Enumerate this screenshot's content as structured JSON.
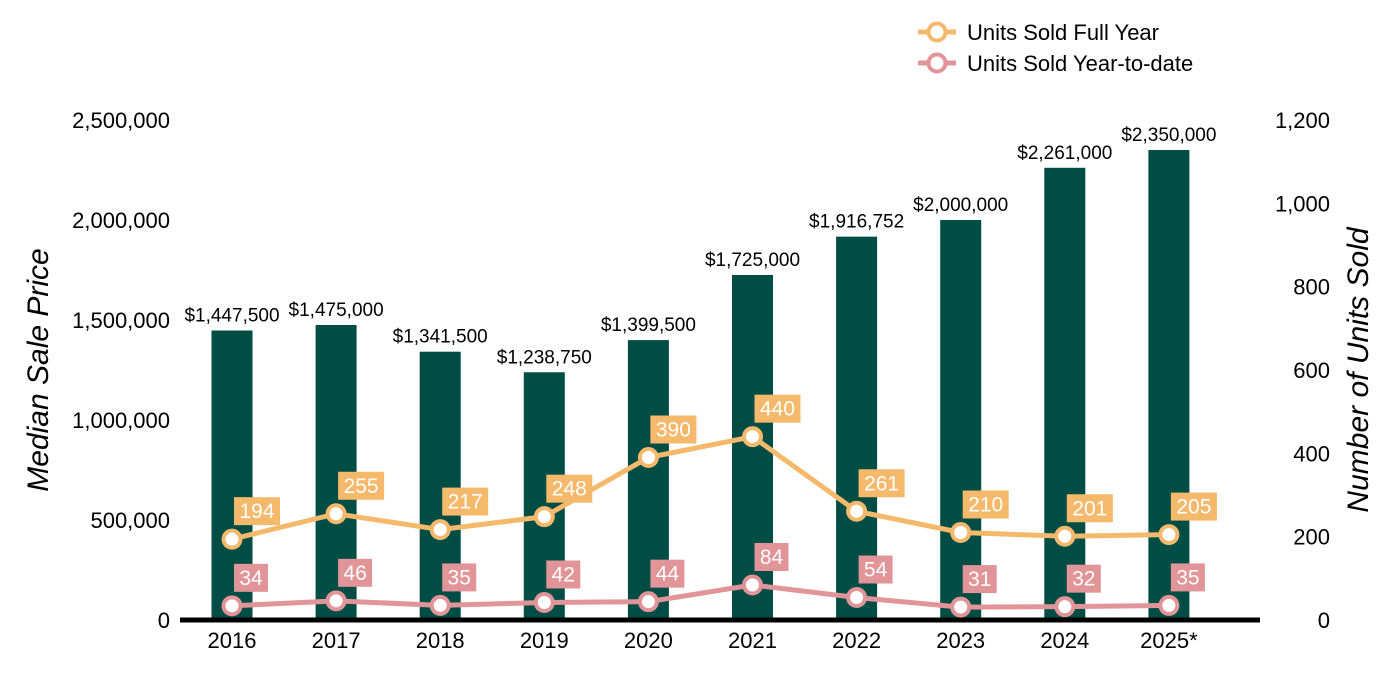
{
  "chart_data": {
    "type": "bar",
    "categories": [
      "2016",
      "2017",
      "2018",
      "2019",
      "2020",
      "2021",
      "2022",
      "2023",
      "2024",
      "2025*"
    ],
    "bar_series": {
      "values": [
        1447500,
        1475000,
        1341500,
        1238750,
        1399500,
        1725000,
        1916752,
        2000000,
        2261000,
        2350000
      ],
      "labels": [
        "$1,447,500",
        "$1,475,000",
        "$1,341,500",
        "$1,238,750",
        "$1,399,500",
        "$1,725,000",
        "$1,916,752",
        "$2,000,000",
        "$2,261,000",
        "$2,350,000"
      ],
      "color": "#004d45"
    },
    "line_series": [
      {
        "name": "Units Sold Full Year",
        "values": [
          194,
          255,
          217,
          248,
          390,
          440,
          261,
          210,
          201,
          205
        ],
        "color": "#f5b96b"
      },
      {
        "name": "Units Sold Year-to-date",
        "values": [
          34,
          46,
          35,
          42,
          44,
          84,
          54,
          31,
          32,
          35
        ],
        "color": "#e19599"
      }
    ],
    "ylabel": "Median Sale Price",
    "y2label": "Number of Units Sold",
    "ylim": [
      0,
      2500000
    ],
    "y2lim": [
      0,
      1200
    ],
    "yticks": [
      "0",
      "500,000",
      "1,000,000",
      "1,500,000",
      "2,000,000",
      "2,500,000"
    ],
    "y2ticks": [
      "0",
      "200",
      "400",
      "600",
      "800",
      "1,000",
      "1,200"
    ],
    "grid": false,
    "legend": "top-right"
  }
}
